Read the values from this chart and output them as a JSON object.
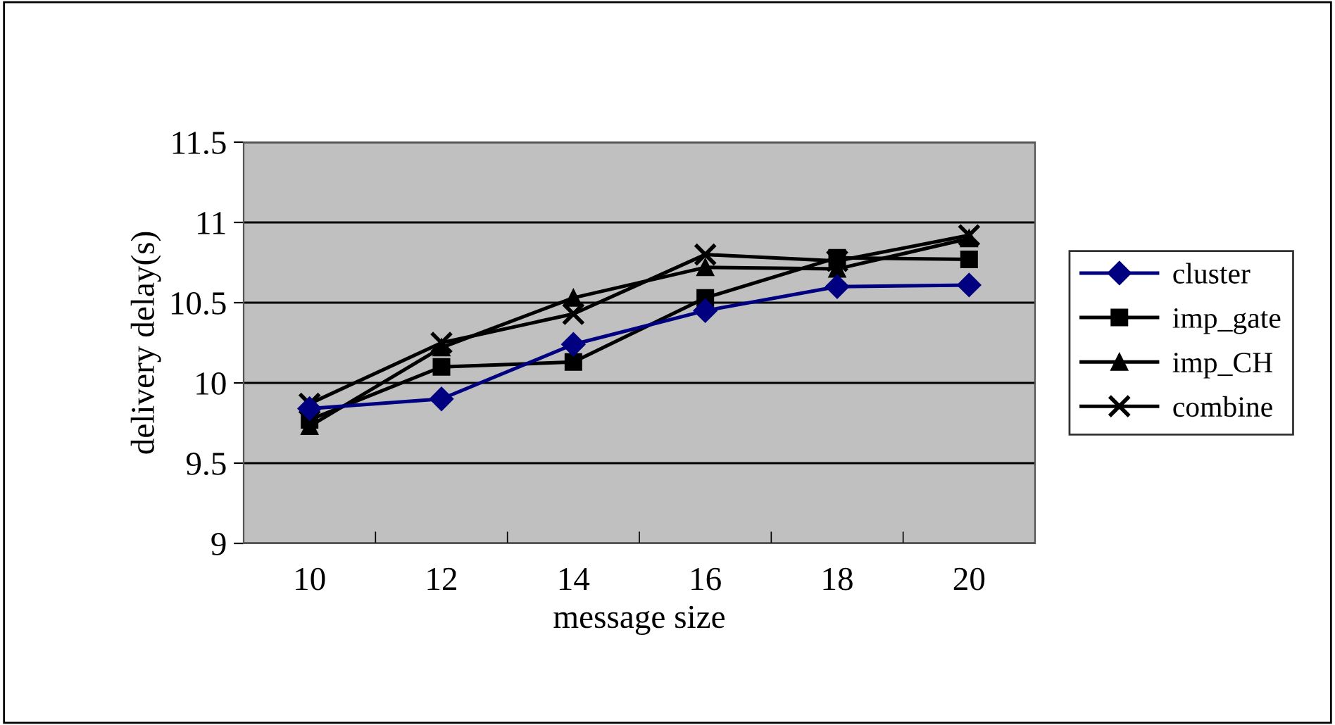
{
  "chart_data": {
    "type": "line",
    "xlabel": "message size",
    "ylabel": "delivery delay(s)",
    "categories": [
      "10",
      "12",
      "14",
      "16",
      "18",
      "20"
    ],
    "series": [
      {
        "name": "cluster",
        "color": "#000080",
        "marker": "diamond",
        "values": [
          9.84,
          9.9,
          10.24,
          10.45,
          10.6,
          10.61
        ]
      },
      {
        "name": "imp_gate",
        "color": "#000000",
        "marker": "square",
        "values": [
          9.77,
          10.1,
          10.13,
          10.53,
          10.78,
          10.77
        ]
      },
      {
        "name": "imp_CH",
        "color": "#000000",
        "marker": "triangle",
        "values": [
          9.73,
          10.22,
          10.53,
          10.72,
          10.71,
          10.9
        ]
      },
      {
        "name": "combine",
        "color": "#000000",
        "marker": "cross",
        "values": [
          9.87,
          10.25,
          10.43,
          10.8,
          10.76,
          10.92
        ]
      }
    ],
    "ylim": [
      9,
      11.5
    ],
    "yticks": [
      9,
      9.5,
      10,
      10.5,
      11,
      11.5
    ],
    "grid": "y",
    "legend": "right"
  }
}
